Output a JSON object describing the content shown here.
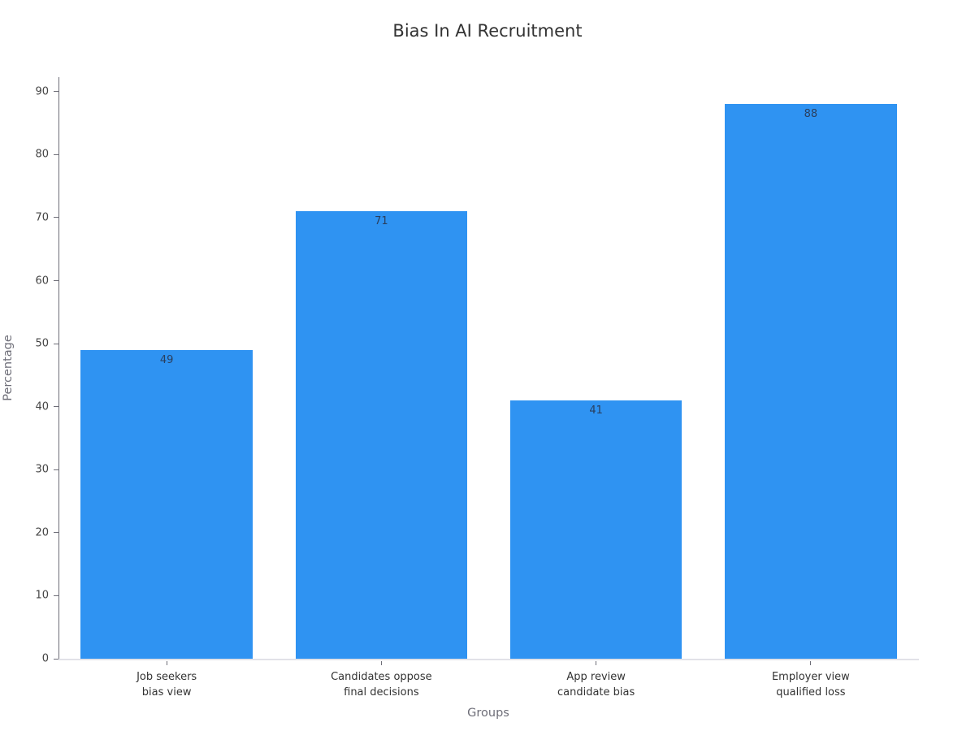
{
  "page": {
    "background": "#ffffff"
  },
  "chart_data": {
    "type": "bar",
    "title": "Bias In AI Recruitment",
    "categories": [
      "Job seekers\nbias view",
      "Candidates oppose\nfinal decisions",
      "App review\ncandidate bias",
      "Employer view\nqualified loss"
    ],
    "values": [
      49,
      71,
      41,
      88
    ],
    "value_labels": [
      "49",
      "71",
      "41",
      "88"
    ],
    "xlabel": "Groups",
    "ylabel": "Percentage",
    "ylim": [
      0,
      92.3
    ],
    "yticks": [
      0,
      10,
      20,
      30,
      40,
      50,
      60,
      70,
      80,
      90
    ],
    "grid": false,
    "legend": "none",
    "bar_width_fraction": 0.8,
    "colors": {
      "bar": "#2f93f2",
      "value_label": "#2a3f5f",
      "title": "#333333",
      "axis_title": "#6e6e78",
      "tick_label": "#444444",
      "category_label": "#333333",
      "y_axis_line": "#6e6e78",
      "x_axis_line": "#e2e2e8"
    }
  }
}
